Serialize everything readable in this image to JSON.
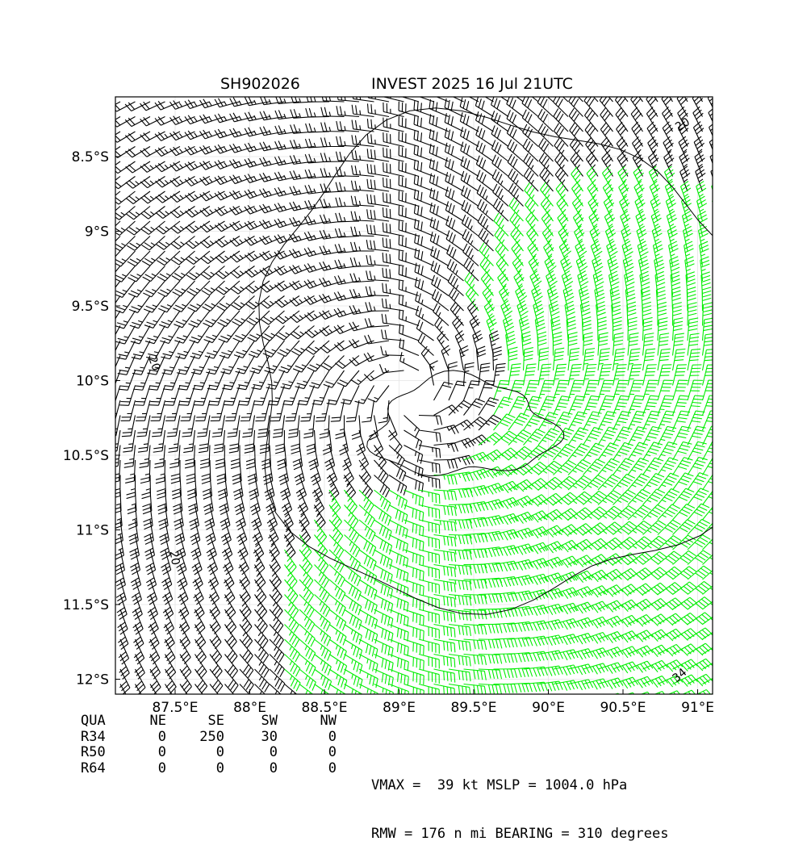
{
  "title": {
    "storm_id": "SH902026",
    "name_time": "INVEST 2025 16 Jul 21UTC"
  },
  "chart_data": {
    "type": "wind-barb-map",
    "x_ticks": [
      87.5,
      88.0,
      88.5,
      89.0,
      89.5,
      90.0,
      90.5,
      91.0
    ],
    "x_tick_labels": [
      "87.5°E",
      "88°E",
      "88.5°E",
      "89°E",
      "89.5°E",
      "90°E",
      "90.5°E",
      "91°E"
    ],
    "y_ticks": [
      -8.5,
      -9.0,
      -9.5,
      -10.0,
      -10.5,
      -11.0,
      -11.5,
      -12.0
    ],
    "y_tick_labels": [
      "8.5°S",
      "9°S",
      "9.5°S",
      "10°S",
      "10.5°S",
      "11°S",
      "11.5°S",
      "12°S"
    ],
    "xlim": [
      87.1,
      91.1
    ],
    "ylim": [
      -12.1,
      -8.1
    ],
    "grid": true,
    "center": {
      "lon": 89.1,
      "lat": -10.1
    },
    "contour_labels": [
      "20",
      "20",
      "20",
      "34"
    ],
    "barb_colors": {
      "below_34kt": "#000000",
      "34kt_plus": "#00ee00",
      "50kt_plus": "#ffa500"
    }
  },
  "wind_radii": {
    "headers": [
      "QUA",
      "NE",
      "SE",
      "SW",
      "NW"
    ],
    "rows": [
      {
        "label": "R34",
        "values": [
          "0",
          "250",
          "30",
          "0"
        ]
      },
      {
        "label": "R50",
        "values": [
          "0",
          "0",
          "0",
          "0"
        ]
      },
      {
        "label": "R64",
        "values": [
          "0",
          "0",
          "0",
          "0"
        ]
      }
    ]
  },
  "stats": {
    "line1": "VMAX =  39 kt MSLP = 1004.0 hPa",
    "line2": "RMW = 176 n mi BEARING = 310 degrees"
  }
}
